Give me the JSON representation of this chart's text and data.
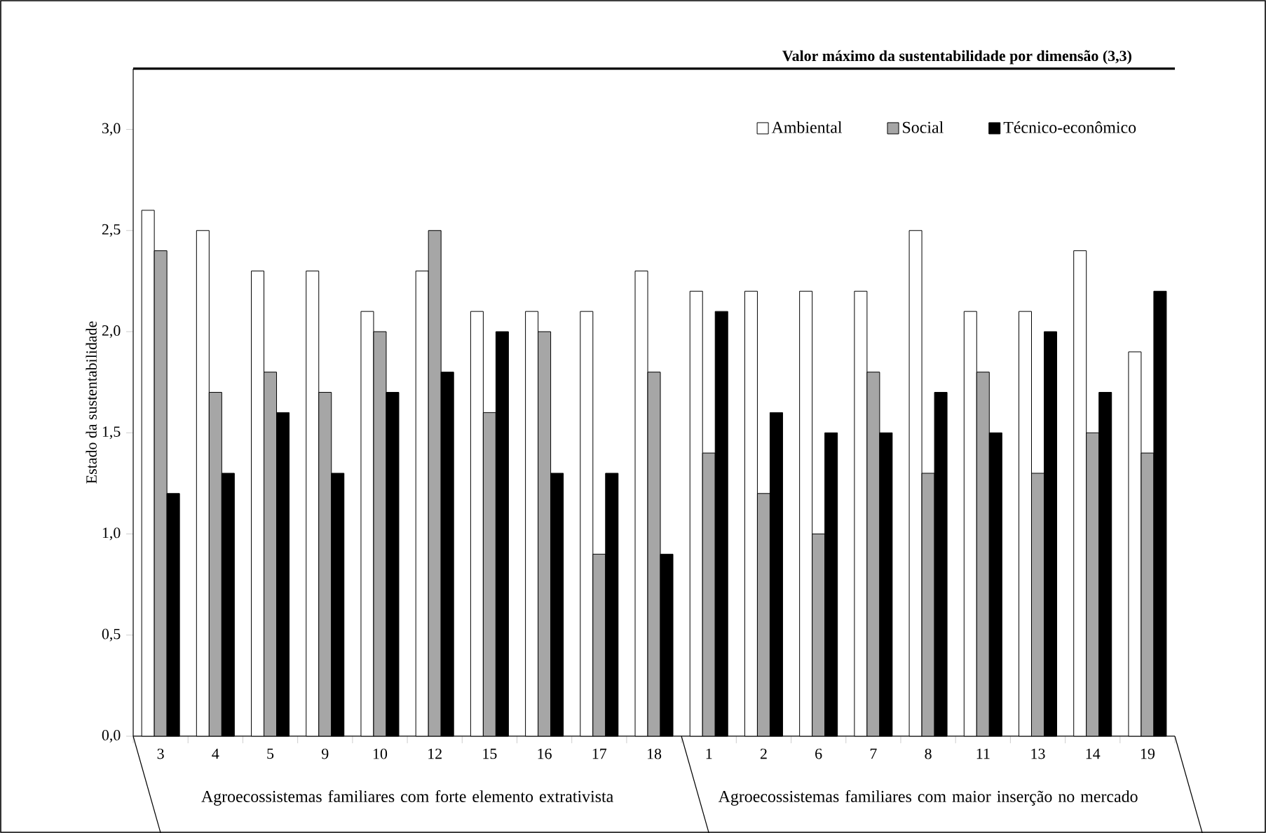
{
  "chart_data": {
    "type": "bar",
    "ylabel": "Estado da sustentabilidade",
    "categories": [
      "3",
      "4",
      "5",
      "9",
      "10",
      "12",
      "15",
      "16",
      "17",
      "18",
      "1",
      "2",
      "6",
      "7",
      "8",
      "11",
      "13",
      "14",
      "19"
    ],
    "series": [
      {
        "name": "Ambiental",
        "color": "#ffffff",
        "values": [
          2.6,
          2.5,
          2.3,
          2.3,
          2.1,
          2.3,
          2.1,
          2.1,
          2.1,
          2.3,
          2.2,
          2.2,
          2.2,
          2.2,
          2.5,
          2.1,
          2.1,
          2.4,
          1.9
        ]
      },
      {
        "name": "Social",
        "color": "#a6a6a6",
        "values": [
          2.4,
          1.7,
          1.8,
          1.7,
          2.0,
          2.5,
          1.6,
          2.0,
          0.9,
          1.8,
          1.4,
          1.2,
          1.0,
          1.8,
          1.3,
          1.8,
          1.3,
          1.5,
          1.4
        ]
      },
      {
        "name": "Técnico-econômico",
        "color": "#000000",
        "values": [
          1.2,
          1.3,
          1.6,
          1.3,
          1.7,
          1.8,
          2.0,
          1.3,
          1.3,
          0.9,
          2.1,
          1.6,
          1.5,
          1.5,
          1.7,
          1.5,
          2.0,
          1.7,
          2.2
        ]
      }
    ],
    "ylim": [
      0,
      3.3
    ],
    "yticks": [
      {
        "value": 0,
        "label": "0,0"
      },
      {
        "value": 0.5,
        "label": "0,5"
      },
      {
        "value": 1,
        "label": "1,0"
      },
      {
        "value": 1.5,
        "label": "1,5"
      },
      {
        "value": 2,
        "label": "2,0"
      },
      {
        "value": 2.5,
        "label": "2,5"
      },
      {
        "value": 3,
        "label": "3,0"
      }
    ],
    "ref_lines": [
      {
        "axis": "y",
        "value": 3.3,
        "label": "Valor máximo da sustentabilidade por dimensão  (3,3)"
      }
    ],
    "annotations": [
      "Agroecossistemas familiares com forte elemento extrativista",
      "Agroecossistemas familiares com maior inserção no mercado"
    ],
    "legend": "top right",
    "grid": false
  }
}
